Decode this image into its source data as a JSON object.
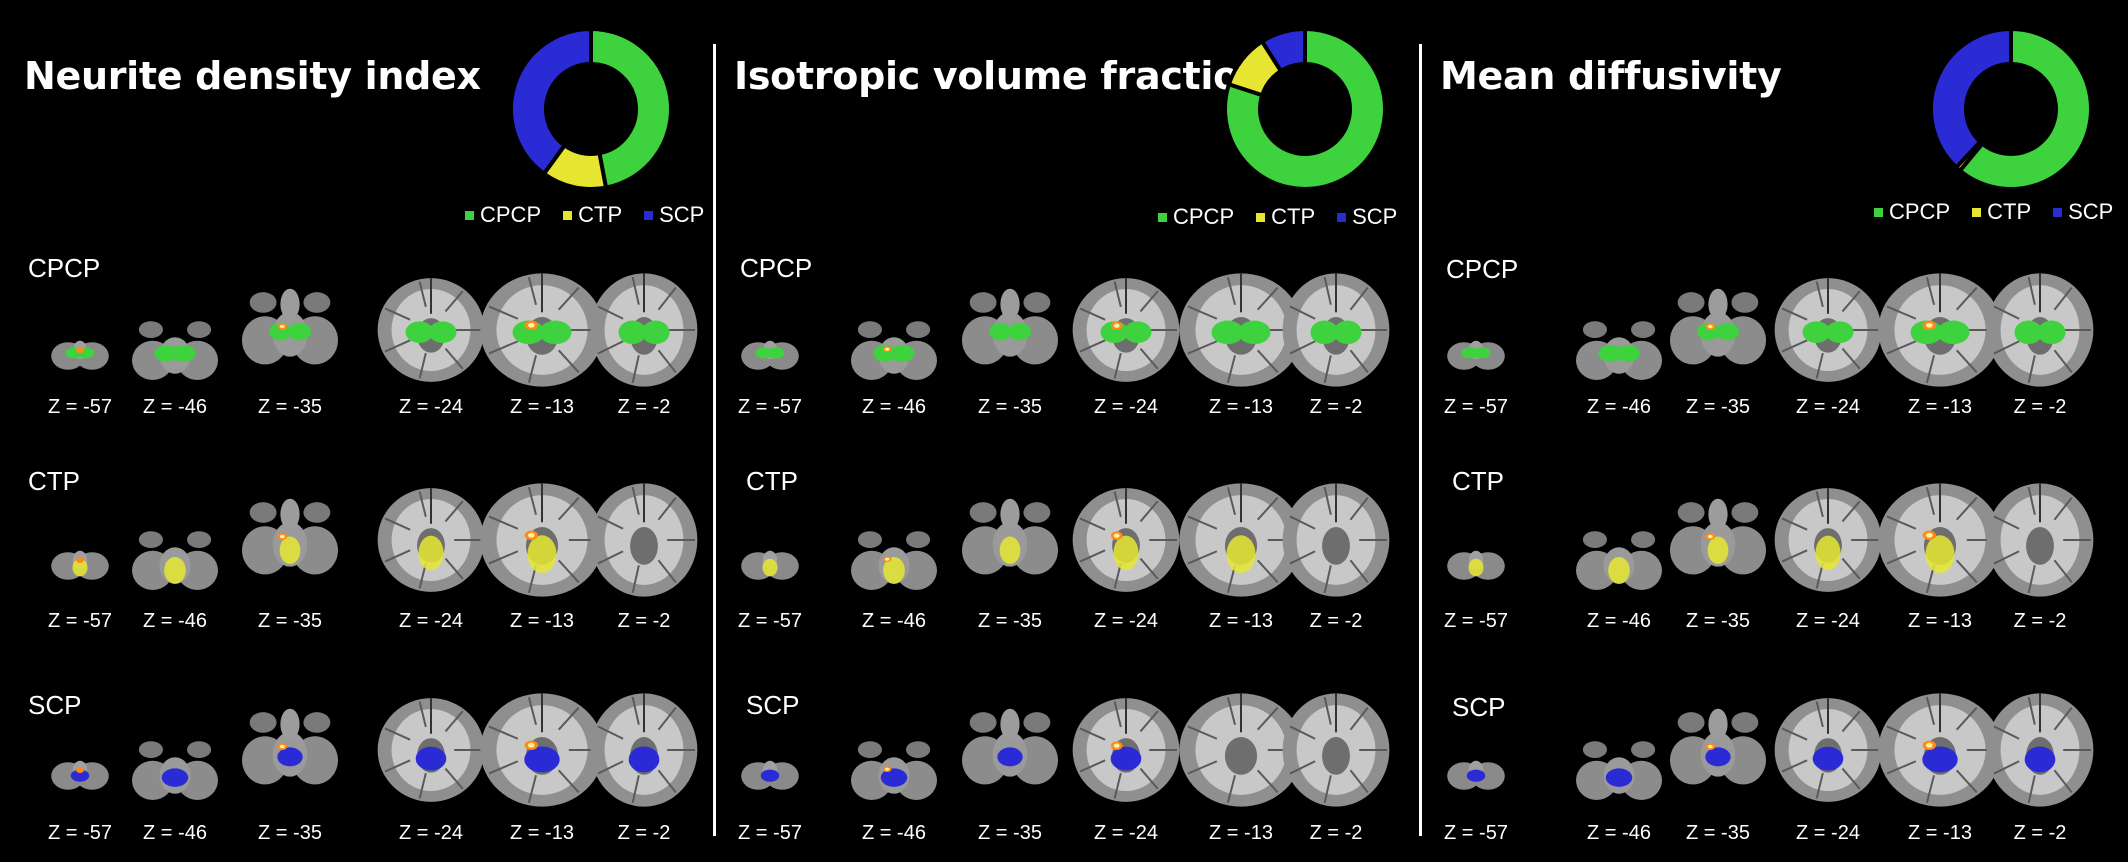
{
  "legend_colors": {
    "CPCP": "#3fd23f",
    "CTP": "#e6e632",
    "SCP": "#2b2bd6"
  },
  "panels": [
    {
      "title": "Neurite density index",
      "legend": [
        "CPCP",
        "CTP",
        "SCP"
      ],
      "chart_data": {
        "type": "pie",
        "variant": "donut",
        "categories": [
          "CPCP",
          "CTP",
          "SCP"
        ],
        "values": [
          47,
          13,
          40
        ],
        "colors": [
          "#3fd23f",
          "#e6e632",
          "#2b2bd6"
        ]
      },
      "rows": [
        {
          "label": "CPCP",
          "overlay": "CPCP"
        },
        {
          "label": "CTP",
          "overlay": "CTP"
        },
        {
          "label": "SCP",
          "overlay": "SCP"
        }
      ]
    },
    {
      "title": "Isotropic volume fraction",
      "legend": [
        "CPCP",
        "CTP",
        "SCP"
      ],
      "chart_data": {
        "type": "pie",
        "variant": "donut",
        "categories": [
          "CPCP",
          "CTP",
          "SCP"
        ],
        "values": [
          80,
          11,
          9
        ],
        "colors": [
          "#3fd23f",
          "#e6e632",
          "#2b2bd6"
        ]
      },
      "rows": [
        {
          "label": "CPCP",
          "overlay": "CPCP"
        },
        {
          "label": "CTP",
          "overlay": "CTP"
        },
        {
          "label": "SCP",
          "overlay": "SCP"
        }
      ]
    },
    {
      "title": "Mean diffusivity",
      "legend": [
        "CPCP",
        "CTP",
        "SCP"
      ],
      "chart_data": {
        "type": "pie",
        "variant": "donut",
        "categories": [
          "CPCP",
          "CTP",
          "SCP"
        ],
        "values": [
          61,
          1,
          38
        ],
        "colors": [
          "#3fd23f",
          "#e6e632",
          "#2b2bd6"
        ]
      },
      "rows": [
        {
          "label": "CPCP",
          "overlay": "CPCP"
        },
        {
          "label": "CTP",
          "overlay": "CTP"
        },
        {
          "label": "SCP",
          "overlay": "SCP"
        }
      ]
    }
  ],
  "z_labels": [
    "Z = -57",
    "Z = -46",
    "Z = -35",
    "Z = -24",
    "Z = -13",
    "Z = -2"
  ]
}
